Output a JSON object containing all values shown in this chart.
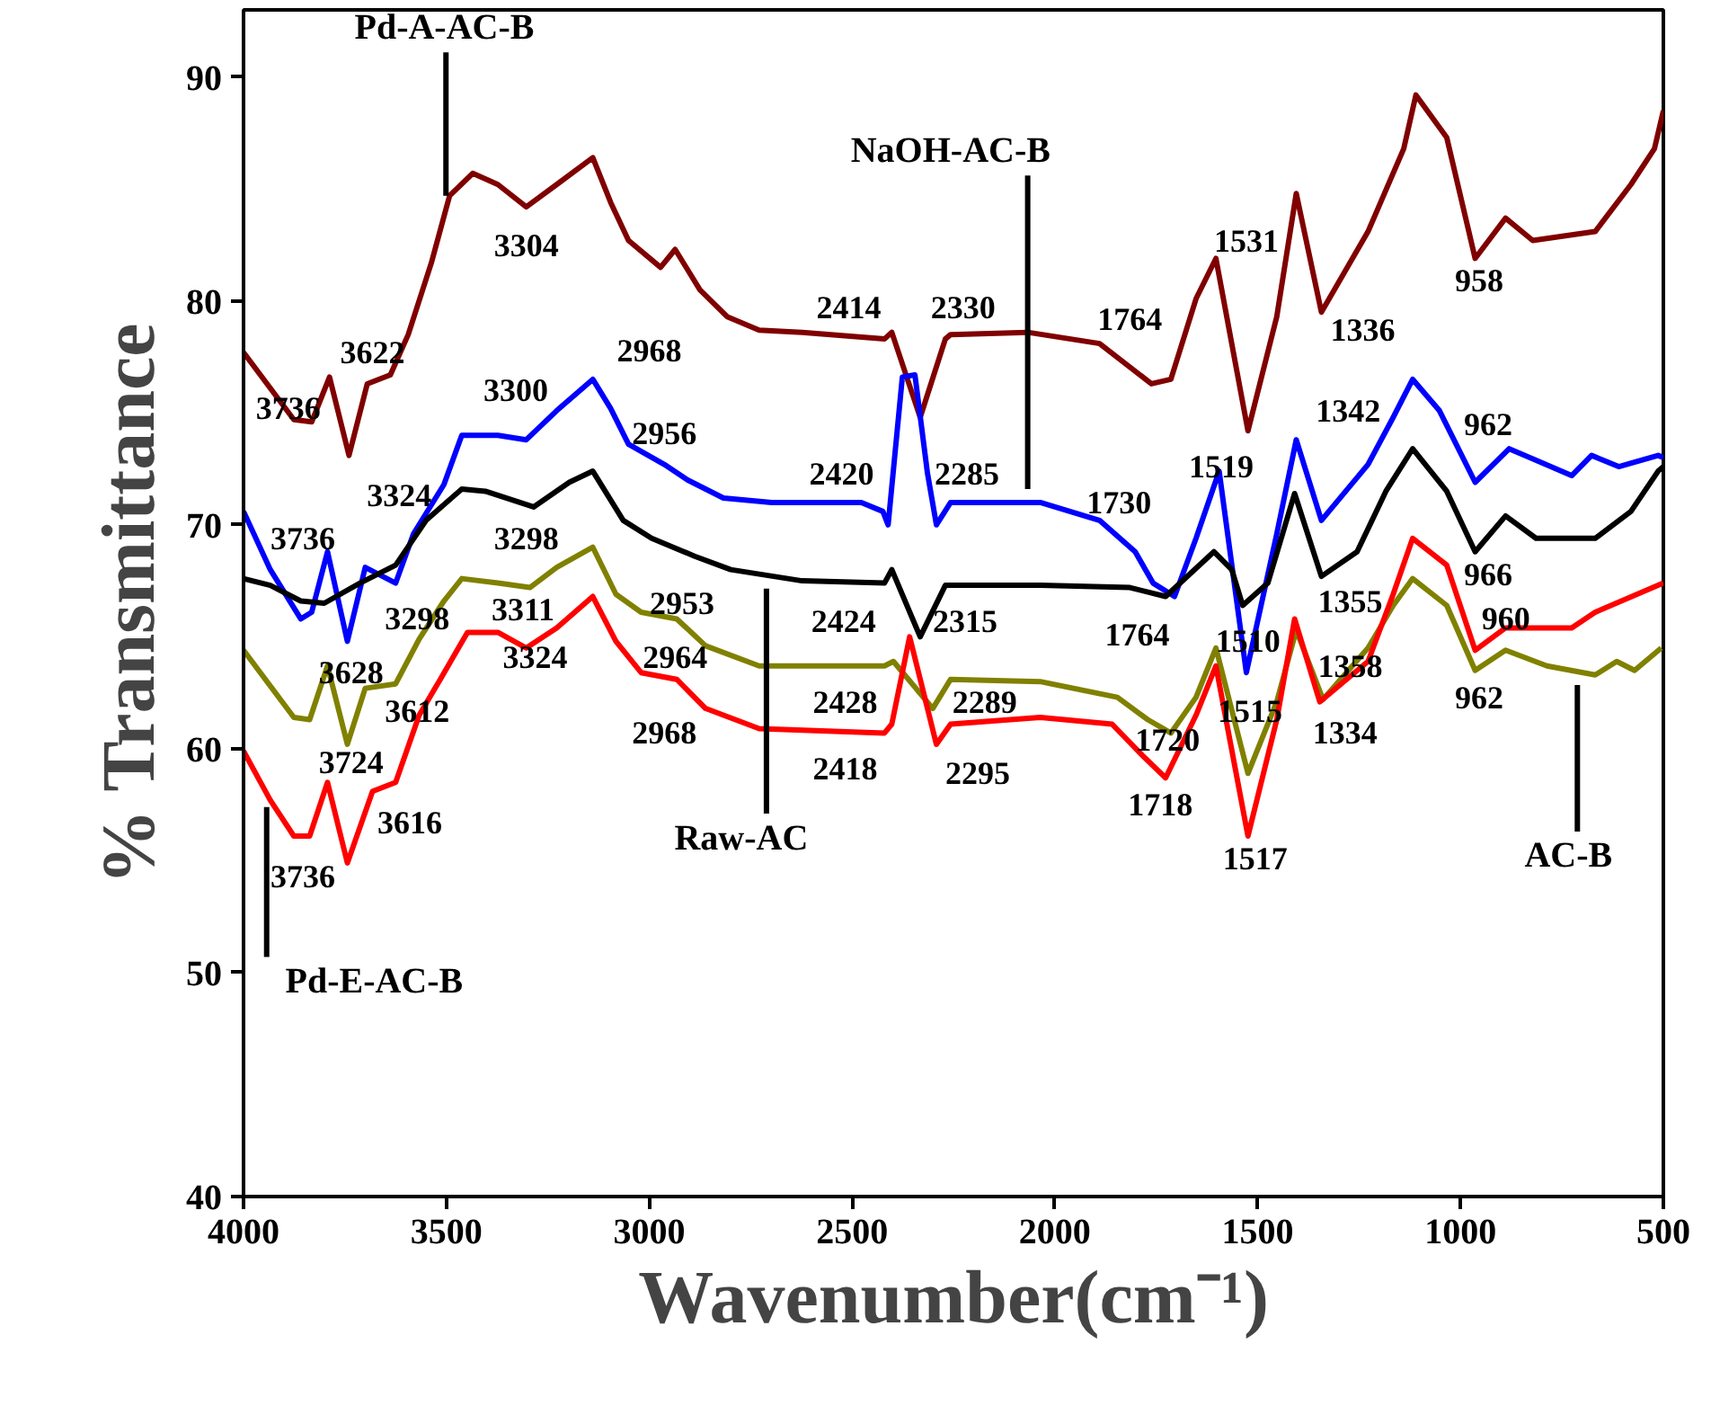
{
  "chart_data": {
    "type": "line",
    "xlabel": "Wavenumber(cm⁻¹)",
    "ylabel": "% Transmittance",
    "xlim": [
      4000,
      500
    ],
    "ylim": [
      40,
      93
    ],
    "xticks": [
      4000,
      3500,
      3000,
      2500,
      2000,
      1500,
      1000,
      500
    ],
    "yticks": [
      40,
      50,
      60,
      70,
      80,
      90
    ],
    "grid": false,
    "series": [
      {
        "name": "Pd-A-AC-B",
        "color": "#800000",
        "x": [
          4000,
          3876,
          3832,
          3788,
          3740,
          3695,
          3638,
          3594,
          3537,
          3492,
          3435,
          3373,
          3303,
          3228,
          3139,
          3095,
          3051,
          2972,
          2936,
          2875,
          2808,
          2729,
          2623,
          2420,
          2402,
          2332,
          2270,
          2257,
          2067,
          1890,
          1762,
          1714,
          1652,
          1603,
          1524,
          1453,
          1405,
          1343,
          1228,
          1140,
          1110,
          1034,
          964,
          889,
          822,
          668,
          580,
          522,
          500
        ],
        "values": [
          77.7,
          74.7,
          74.6,
          76.6,
          73.1,
          76.3,
          76.7,
          78.5,
          81.7,
          84.7,
          85.7,
          85.2,
          84.2,
          85.2,
          86.4,
          84.4,
          82.7,
          81.5,
          82.3,
          80.5,
          79.3,
          78.7,
          78.6,
          78.3,
          78.6,
          74.8,
          78.3,
          78.5,
          78.6,
          78.1,
          76.3,
          76.5,
          80.1,
          81.9,
          74.2,
          79.3,
          84.8,
          79.5,
          83.1,
          86.8,
          89.2,
          87.3,
          81.9,
          83.7,
          82.7,
          83.1,
          85.2,
          86.8,
          88.5
        ]
      },
      {
        "name": "NaOH-AC-B",
        "color": "#0000ff",
        "x": [
          4000,
          3934,
          3859,
          3832,
          3793,
          3744,
          3700,
          3625,
          3581,
          3506,
          3462,
          3373,
          3303,
          3228,
          3139,
          3095,
          3051,
          2963,
          2905,
          2817,
          2698,
          2477,
          2424,
          2411,
          2376,
          2345,
          2314,
          2292,
          2257,
          2036,
          1890,
          1802,
          1758,
          1705,
          1652,
          1595,
          1528,
          1453,
          1405,
          1343,
          1228,
          1166,
          1118,
          1052,
          964,
          880,
          726,
          677,
          610,
          513,
          500
        ],
        "values": [
          70.6,
          68.0,
          65.8,
          66.1,
          68.8,
          64.8,
          68.1,
          67.4,
          69.6,
          71.8,
          74.0,
          74.0,
          73.8,
          75.1,
          76.5,
          75.2,
          73.6,
          72.7,
          72.0,
          71.2,
          71.0,
          71.0,
          70.6,
          70.0,
          76.6,
          76.7,
          72.3,
          70.0,
          71.0,
          71.0,
          70.2,
          68.8,
          67.4,
          66.8,
          69.4,
          72.4,
          63.4,
          69.6,
          73.8,
          70.2,
          72.7,
          74.8,
          76.5,
          75.1,
          71.9,
          73.4,
          72.2,
          73.1,
          72.6,
          73.1,
          73.0
        ]
      },
      {
        "name": "Raw-AC",
        "color": "#000000",
        "x": [
          4000,
          3934,
          3859,
          3801,
          3713,
          3625,
          3550,
          3462,
          3404,
          3285,
          3197,
          3139,
          3064,
          2994,
          2888,
          2799,
          2623,
          2420,
          2402,
          2332,
          2270,
          2036,
          1815,
          1727,
          1608,
          1564,
          1537,
          1475,
          1409,
          1343,
          1255,
          1184,
          1118,
          1034,
          964,
          889,
          814,
          668,
          580,
          513,
          500
        ],
        "values": [
          67.6,
          67.3,
          66.6,
          66.5,
          67.4,
          68.2,
          70.2,
          71.6,
          71.5,
          70.8,
          71.9,
          72.4,
          70.2,
          69.4,
          68.6,
          68.0,
          67.5,
          67.4,
          68.0,
          65.0,
          67.3,
          67.3,
          67.2,
          66.8,
          68.8,
          68.0,
          66.4,
          67.4,
          71.4,
          67.7,
          68.8,
          71.5,
          73.4,
          71.5,
          68.8,
          70.4,
          69.4,
          69.4,
          70.6,
          72.4,
          72.6
        ]
      },
      {
        "name": "AC-B",
        "color": "#808000",
        "x": [
          4000,
          3876,
          3837,
          3793,
          3744,
          3700,
          3625,
          3567,
          3506,
          3462,
          3373,
          3294,
          3228,
          3139,
          3082,
          3020,
          2932,
          2861,
          2729,
          2420,
          2398,
          2301,
          2257,
          2036,
          1846,
          1771,
          1714,
          1652,
          1603,
          1524,
          1453,
          1405,
          1339,
          1228,
          1166,
          1118,
          1034,
          964,
          889,
          787,
          668,
          615,
          571,
          505
        ],
        "values": [
          64.4,
          61.4,
          61.3,
          63.7,
          60.2,
          62.7,
          62.9,
          64.9,
          66.6,
          67.6,
          67.4,
          67.2,
          68.1,
          69.0,
          66.9,
          66.1,
          65.8,
          64.6,
          63.7,
          63.7,
          63.9,
          61.8,
          63.1,
          63.0,
          62.3,
          61.3,
          60.7,
          62.3,
          64.5,
          58.9,
          62.1,
          65.3,
          62.2,
          64.5,
          66.4,
          67.6,
          66.4,
          63.5,
          64.4,
          63.7,
          63.3,
          63.9,
          63.5,
          64.5
        ]
      },
      {
        "name": "Pd-E-AC-B",
        "color": "#ff0000",
        "x": [
          4000,
          3934,
          3876,
          3837,
          3793,
          3744,
          3682,
          3625,
          3567,
          3515,
          3448,
          3373,
          3303,
          3228,
          3139,
          3082,
          3020,
          2932,
          2861,
          2729,
          2420,
          2402,
          2358,
          2292,
          2257,
          2036,
          1859,
          1784,
          1727,
          1652,
          1603,
          1524,
          1453,
          1409,
          1347,
          1228,
          1166,
          1118,
          1034,
          964,
          889,
          726,
          668,
          513,
          500
        ],
        "values": [
          59.9,
          57.7,
          56.1,
          56.1,
          58.5,
          54.9,
          58.1,
          58.5,
          61.5,
          63.1,
          65.2,
          65.2,
          64.5,
          65.4,
          66.8,
          64.8,
          63.4,
          63.1,
          61.8,
          60.9,
          60.7,
          61.1,
          65.0,
          60.2,
          61.1,
          61.4,
          61.1,
          59.7,
          58.7,
          61.5,
          63.7,
          56.1,
          61.3,
          65.8,
          62.1,
          63.9,
          66.9,
          69.4,
          68.2,
          64.4,
          65.4,
          65.4,
          66.1,
          67.3,
          67.4
        ]
      }
    ],
    "annotations": [
      "3736",
      "3622",
      "3304",
      "2968",
      "2414",
      "2330",
      "1764",
      "1531",
      "1336",
      "958",
      "3300",
      "2956",
      "2420",
      "2285",
      "1730",
      "1519",
      "1342",
      "962",
      "3324",
      "3736",
      "3298",
      "2953",
      "2424",
      "2315",
      "1764",
      "1510",
      "1355",
      "966",
      "3298",
      "3311",
      "3628",
      "3612",
      "2964",
      "2428",
      "2289",
      "1720",
      "1515",
      "1358",
      "962",
      "960",
      "3724",
      "3616",
      "3736",
      "3324",
      "2968",
      "2418",
      "2295",
      "1718",
      "1517",
      "1334"
    ]
  }
}
